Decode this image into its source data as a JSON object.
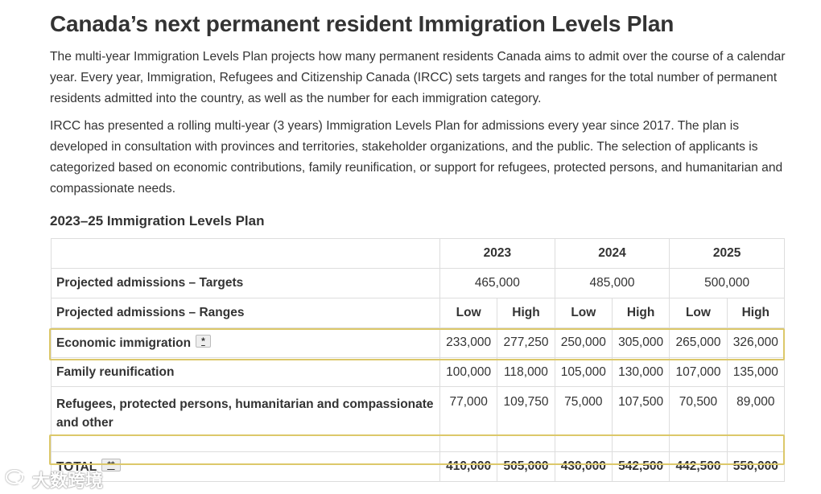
{
  "title": "Canada’s next permanent resident Immigration Levels Plan",
  "paragraphs": [
    "The multi-year Immigration Levels Plan projects how many permanent residents Canada aims to admit over the course of a calendar year. Every year, Immigration, Refugees and Citizenship Canada (IRCC) sets targets and ranges for the total number of permanent residents admitted into the country, as well as the number for each immigration category.",
    "IRCC has presented a rolling multi-year (3 years) Immigration Levels Plan for admissions every year since 2017. The plan is developed in consultation with provinces and territories, stakeholder organizations, and the public. The selection of applicants is categorized based on economic contributions, family reunification, or support for refugees, protected persons, and humanitarian and compassionate needs."
  ],
  "table": {
    "caption": "2023–25 Immigration Levels Plan",
    "years": [
      "2023",
      "2024",
      "2025"
    ],
    "targets_label": "Projected admissions – Targets",
    "targets": [
      "465,000",
      "485,000",
      "500,000"
    ],
    "ranges_label": "Projected admissions – Ranges",
    "low_label": "Low",
    "high_label": "High",
    "rows": [
      {
        "label": "Economic immigration",
        "footnote": "*",
        "values": [
          "233,000",
          "277,250",
          "250,000",
          "305,000",
          "265,000",
          "326,000"
        ]
      },
      {
        "label": "Family reunification",
        "footnote": "",
        "values": [
          "100,000",
          "118,000",
          "105,000",
          "130,000",
          "107,000",
          "135,000"
        ]
      },
      {
        "label": "Refugees, protected persons, humanitarian and compassionate and other",
        "footnote": "",
        "values": [
          "77,000",
          "109,750",
          "75,000",
          "107,500",
          "70,500",
          "89,000"
        ]
      },
      {
        "label": "TOTAL",
        "footnote": "**",
        "values": [
          "410,000",
          "505,000",
          "430,000",
          "542,500",
          "442,500",
          "550,000"
        ]
      }
    ]
  },
  "watermark": {
    "text": "大数跨境",
    "logo": "speech-bubble-logo"
  },
  "colors": {
    "highlight_border": "#dcc86a",
    "text": "#333333",
    "grid": "#dddddd"
  }
}
